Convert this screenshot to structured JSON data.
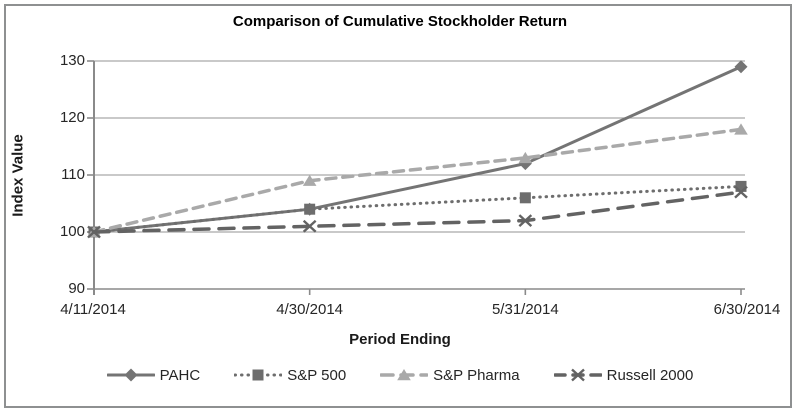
{
  "chart_data": {
    "type": "line",
    "title": "Comparison of Cumulative Stockholder Return",
    "xlabel": "Period Ending",
    "ylabel": "Index Value",
    "categories": [
      "4/11/2014",
      "4/30/2014",
      "5/31/2014",
      "6/30/2014"
    ],
    "series": [
      {
        "name": "PAHC",
        "values": [
          100,
          104,
          112,
          129
        ],
        "color": "#747474",
        "marker": "diamond",
        "line_style": "solid"
      },
      {
        "name": "S&P 500",
        "values": [
          100,
          104,
          106,
          108
        ],
        "color": "#6d6d6d",
        "marker": "square",
        "line_style": "dotted"
      },
      {
        "name": "S&P Pharma",
        "values": [
          100,
          109,
          113,
          118
        ],
        "color": "#a9a9a9",
        "marker": "triangle",
        "line_style": "dashed"
      },
      {
        "name": "Russell 2000",
        "values": [
          100,
          101,
          102,
          107
        ],
        "color": "#636363",
        "marker": "x",
        "line_style": "long-dash"
      }
    ],
    "ylim": [
      90,
      130
    ],
    "y_ticks": [
      90,
      100,
      110,
      120,
      130
    ],
    "grid": true,
    "legend_position": "bottom",
    "gridline_color": "#a9a9a9",
    "axis_color": "#8a8a8a",
    "background_color": "#ffffff",
    "frame_border_color": "#8e9091"
  }
}
